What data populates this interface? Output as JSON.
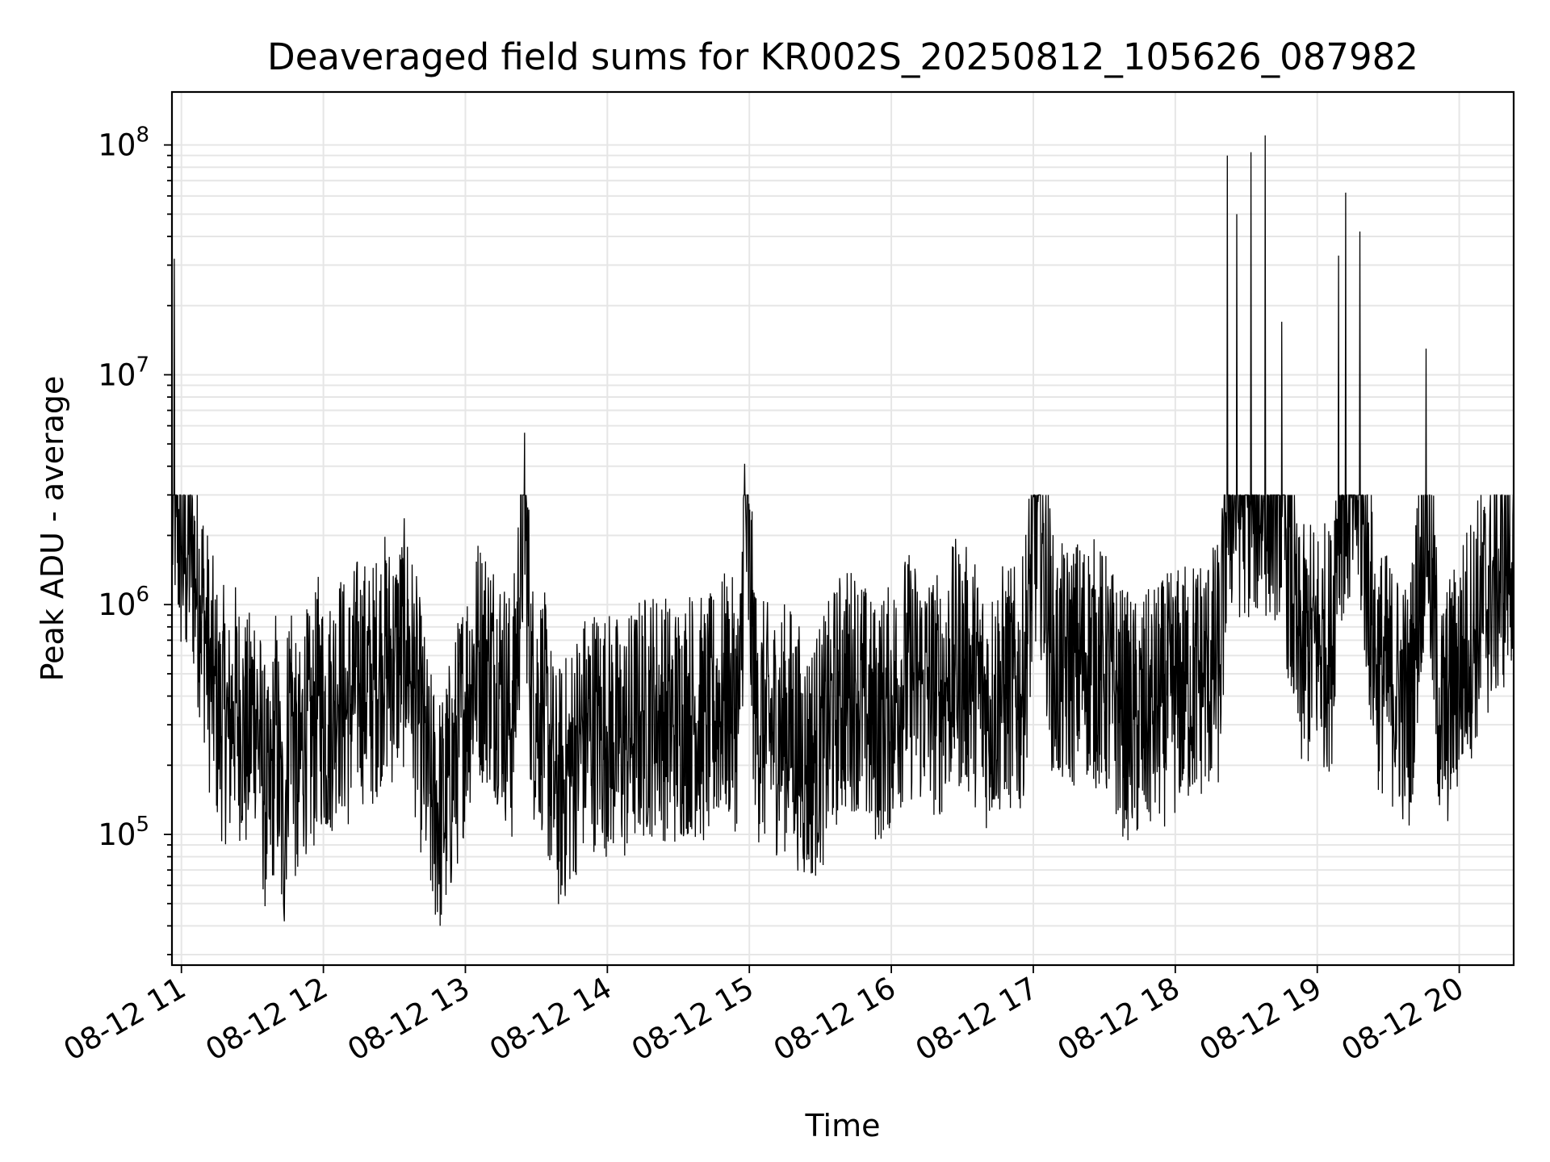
{
  "chart_data": {
    "type": "line",
    "title": "Deaveraged field sums for KR002S_20250812_105626_087982",
    "xlabel": "Time",
    "ylabel": "Peak ADU - average",
    "y_scale": "log",
    "ylim": [
      27000,
      170000000
    ],
    "xlim": [
      "2025-08-12 10:56",
      "2025-08-12 20:23"
    ],
    "x_ticks": [
      "08-12 11",
      "08-12 12",
      "08-12 13",
      "08-12 14",
      "08-12 15",
      "08-12 16",
      "08-12 17",
      "08-12 18",
      "08-12 19",
      "08-12 20"
    ],
    "y_ticks": [
      {
        "base": "10",
        "exp": "5",
        "value": 100000
      },
      {
        "base": "10",
        "exp": "6",
        "value": 1000000
      },
      {
        "base": "10",
        "exp": "7",
        "value": 10000000
      },
      {
        "base": "10",
        "exp": "8",
        "value": 100000000
      }
    ],
    "grid": true,
    "line_color": "#000000",
    "grid_color": "#e6e6e6",
    "series": [
      {
        "points": [
          [
            "10:56",
            2200000
          ],
          [
            "10:57",
            32000000
          ],
          [
            "10:58",
            2400000
          ],
          [
            "11:00",
            1800000
          ],
          [
            "11:02",
            1600000
          ],
          [
            "11:04",
            2000000
          ],
          [
            "11:06",
            1300000
          ],
          [
            "11:08",
            1100000
          ],
          [
            "11:10",
            800000
          ],
          [
            "11:12",
            500000
          ],
          [
            "11:14",
            450000
          ],
          [
            "11:16",
            300000
          ],
          [
            "11:18",
            350000
          ],
          [
            "11:20",
            260000
          ],
          [
            "11:22",
            380000
          ],
          [
            "11:25",
            320000
          ],
          [
            "11:28",
            250000
          ],
          [
            "11:31",
            400000
          ],
          [
            "11:34",
            200000
          ],
          [
            "11:37",
            120000
          ],
          [
            "11:40",
            300000
          ],
          [
            "11:43",
            90000
          ],
          [
            "11:46",
            500000
          ],
          [
            "11:49",
            150000
          ],
          [
            "11:52",
            300000
          ],
          [
            "11:55",
            250000
          ],
          [
            "11:58",
            400000
          ],
          [
            "12:02",
            300000
          ],
          [
            "12:06",
            450000
          ],
          [
            "12:10",
            350000
          ],
          [
            "12:15",
            500000
          ],
          [
            "12:20",
            420000
          ],
          [
            "12:25",
            600000
          ],
          [
            "12:30",
            550000
          ],
          [
            "12:35",
            700000
          ],
          [
            "12:40",
            350000
          ],
          [
            "12:45",
            150000
          ],
          [
            "12:50",
            120000
          ],
          [
            "12:55",
            200000
          ],
          [
            "13:00",
            380000
          ],
          [
            "13:05",
            600000
          ],
          [
            "13:10",
            550000
          ],
          [
            "13:15",
            450000
          ],
          [
            "13:20",
            300000
          ],
          [
            "13:25",
            5600000
          ],
          [
            "13:28",
            400000
          ],
          [
            "13:33",
            350000
          ],
          [
            "13:38",
            150000
          ],
          [
            "13:43",
            180000
          ],
          [
            "13:48",
            250000
          ],
          [
            "13:53",
            300000
          ],
          [
            "14:00",
            280000
          ],
          [
            "14:07",
            250000
          ],
          [
            "14:14",
            320000
          ],
          [
            "14:21",
            350000
          ],
          [
            "14:28",
            300000
          ],
          [
            "14:35",
            350000
          ],
          [
            "14:42",
            300000
          ],
          [
            "14:49",
            400000
          ],
          [
            "14:56",
            350000
          ],
          [
            "14:58",
            4100000
          ],
          [
            "15:03",
            320000
          ],
          [
            "15:10",
            280000
          ],
          [
            "15:17",
            300000
          ],
          [
            "15:24",
            200000
          ],
          [
            "15:31",
            250000
          ],
          [
            "15:38",
            400000
          ],
          [
            "15:45",
            450000
          ],
          [
            "15:52",
            300000
          ],
          [
            "15:59",
            350000
          ],
          [
            "16:06",
            500000
          ],
          [
            "16:13",
            450000
          ],
          [
            "16:20",
            400000
          ],
          [
            "16:27",
            550000
          ],
          [
            "16:34",
            500000
          ],
          [
            "16:41",
            350000
          ],
          [
            "16:48",
            450000
          ],
          [
            "16:55",
            400000
          ],
          [
            "17:02",
            2800000
          ],
          [
            "17:09",
            500000
          ],
          [
            "17:16",
            550000
          ],
          [
            "17:23",
            600000
          ],
          [
            "17:30",
            500000
          ],
          [
            "17:37",
            350000
          ],
          [
            "17:44",
            300000
          ],
          [
            "17:51",
            350000
          ],
          [
            "17:58",
            400000
          ],
          [
            "18:05",
            450000
          ],
          [
            "18:12",
            500000
          ],
          [
            "18:19",
            550000
          ],
          [
            "18:22",
            90000000
          ],
          [
            "18:26",
            50000000
          ],
          [
            "18:32",
            93000000
          ],
          [
            "18:38",
            110000000
          ],
          [
            "18:45",
            17000000
          ],
          [
            "18:52",
            600000
          ],
          [
            "18:59",
            700000
          ],
          [
            "19:06",
            650000
          ],
          [
            "19:09",
            33000000
          ],
          [
            "19:12",
            62000000
          ],
          [
            "19:18",
            42000000
          ],
          [
            "19:25",
            550000
          ],
          [
            "19:32",
            450000
          ],
          [
            "19:39",
            350000
          ],
          [
            "19:46",
            13000000
          ],
          [
            "19:52",
            300000
          ],
          [
            "19:58",
            450000
          ],
          [
            "20:04",
            700000
          ],
          [
            "20:10",
            1000000
          ],
          [
            "20:16",
            1300000
          ],
          [
            "20:20",
            1500000
          ],
          [
            "20:23",
            2000000
          ]
        ]
      }
    ]
  }
}
